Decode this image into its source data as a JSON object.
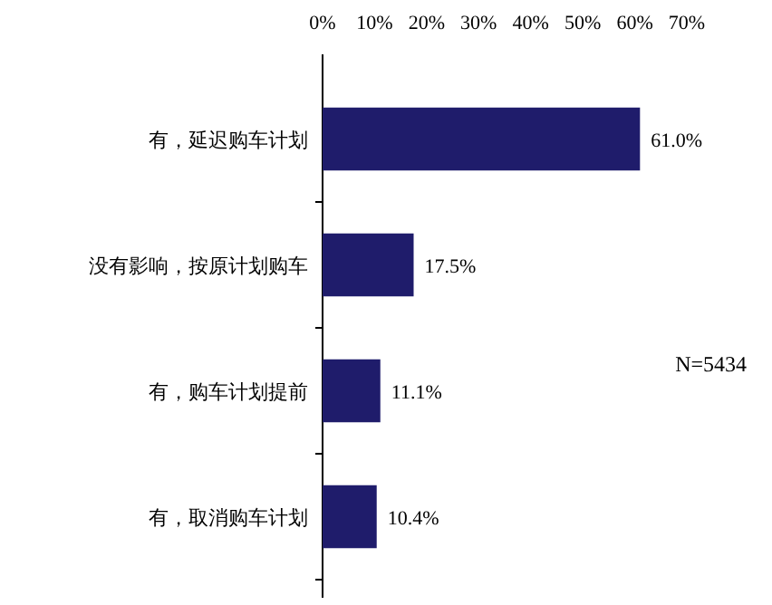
{
  "chart_data": {
    "type": "bar",
    "orientation": "horizontal",
    "categories": [
      "有，延迟购车计划",
      "没有影响，按原计划购车",
      "有，购车计划提前",
      "有，取消购车计划"
    ],
    "values": [
      61.0,
      17.5,
      11.1,
      10.4
    ],
    "value_labels": [
      "61.0%",
      "17.5%",
      "11.1%",
      "10.4%"
    ],
    "color": "#1f1c6b",
    "xlim": [
      0,
      70
    ],
    "xticks": [
      {
        "value": 0,
        "label": "0%"
      },
      {
        "value": 10,
        "label": "10%"
      },
      {
        "value": 20,
        "label": "20%"
      },
      {
        "value": 30,
        "label": "30%"
      },
      {
        "value": 40,
        "label": "40%"
      },
      {
        "value": 50,
        "label": "50%"
      },
      {
        "value": 60,
        "label": "60%"
      },
      {
        "value": 70,
        "label": "70%"
      }
    ],
    "annotations": [
      "N=5434"
    ]
  }
}
